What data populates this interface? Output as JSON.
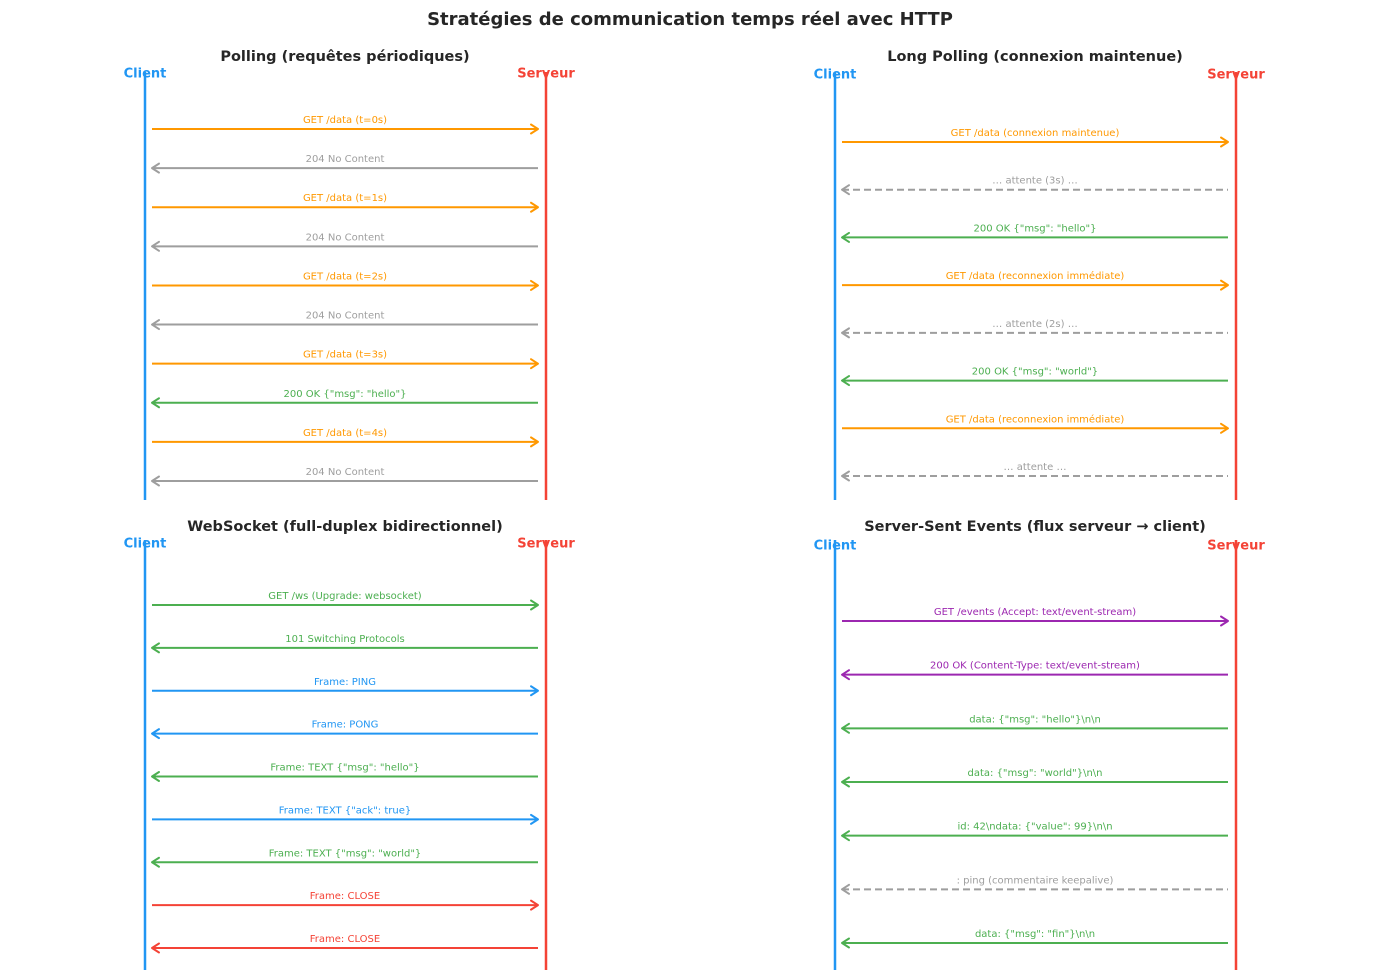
{
  "title": "Stratégies de communication temps réel avec HTTP",
  "panels": [
    {
      "title": "Polling (requêtes périodiques)",
      "client": "Client",
      "server": "Serveur",
      "messages": [
        {
          "label": "GET /data (t=0s)",
          "dir": "right",
          "color": "#ff9800",
          "dashed": false
        },
        {
          "label": "204 No Content",
          "dir": "left",
          "color": "#9e9e9e",
          "dashed": false
        },
        {
          "label": "GET /data (t=1s)",
          "dir": "right",
          "color": "#ff9800",
          "dashed": false
        },
        {
          "label": "204 No Content",
          "dir": "left",
          "color": "#9e9e9e",
          "dashed": false
        },
        {
          "label": "GET /data (t=2s)",
          "dir": "right",
          "color": "#ff9800",
          "dashed": false
        },
        {
          "label": "204 No Content",
          "dir": "left",
          "color": "#9e9e9e",
          "dashed": false
        },
        {
          "label": "GET /data (t=3s)",
          "dir": "right",
          "color": "#ff9800",
          "dashed": false
        },
        {
          "label": "200 OK {\"msg\": \"hello\"}",
          "dir": "left",
          "color": "#4caf50",
          "dashed": false
        },
        {
          "label": "GET /data (t=4s)",
          "dir": "right",
          "color": "#ff9800",
          "dashed": false
        },
        {
          "label": "204 No Content",
          "dir": "left",
          "color": "#9e9e9e",
          "dashed": false
        }
      ]
    },
    {
      "title": "Long Polling (connexion maintenue)",
      "client": "Client",
      "server": "Serveur",
      "messages": [
        {
          "label": "GET /data (connexion maintenue)",
          "dir": "right",
          "color": "#ff9800",
          "dashed": false
        },
        {
          "label": "… attente (3s) …",
          "dir": "left",
          "color": "#9e9e9e",
          "dashed": true
        },
        {
          "label": "200 OK {\"msg\": \"hello\"}",
          "dir": "left",
          "color": "#4caf50",
          "dashed": false
        },
        {
          "label": "GET /data (reconnexion immédiate)",
          "dir": "right",
          "color": "#ff9800",
          "dashed": false
        },
        {
          "label": "… attente (2s) …",
          "dir": "left",
          "color": "#9e9e9e",
          "dashed": true
        },
        {
          "label": "200 OK {\"msg\": \"world\"}",
          "dir": "left",
          "color": "#4caf50",
          "dashed": false
        },
        {
          "label": "GET /data (reconnexion immédiate)",
          "dir": "right",
          "color": "#ff9800",
          "dashed": false
        },
        {
          "label": "… attente …",
          "dir": "left",
          "color": "#9e9e9e",
          "dashed": true
        }
      ]
    },
    {
      "title": "WebSocket (full-duplex bidirectionnel)",
      "client": "Client",
      "server": "Serveur",
      "messages": [
        {
          "label": "GET /ws (Upgrade: websocket)",
          "dir": "right",
          "color": "#4caf50",
          "dashed": false
        },
        {
          "label": "101 Switching Protocols",
          "dir": "left",
          "color": "#4caf50",
          "dashed": false
        },
        {
          "label": "Frame: PING",
          "dir": "right",
          "color": "#2196f3",
          "dashed": false
        },
        {
          "label": "Frame: PONG",
          "dir": "left",
          "color": "#2196f3",
          "dashed": false
        },
        {
          "label": "Frame: TEXT {\"msg\": \"hello\"}",
          "dir": "left",
          "color": "#4caf50",
          "dashed": false
        },
        {
          "label": "Frame: TEXT {\"ack\": true}",
          "dir": "right",
          "color": "#2196f3",
          "dashed": false
        },
        {
          "label": "Frame: TEXT {\"msg\": \"world\"}",
          "dir": "left",
          "color": "#4caf50",
          "dashed": false
        },
        {
          "label": "Frame: CLOSE",
          "dir": "right",
          "color": "#f44336",
          "dashed": false
        },
        {
          "label": "Frame: CLOSE",
          "dir": "left",
          "color": "#f44336",
          "dashed": false
        }
      ]
    },
    {
      "title": "Server-Sent Events (flux serveur → client)",
      "client": "Client",
      "server": "Serveur",
      "messages": [
        {
          "label": "GET /events (Accept: text/event-stream)",
          "dir": "right",
          "color": "#9c27b0",
          "dashed": false
        },
        {
          "label": "200 OK (Content-Type: text/event-stream)",
          "dir": "left",
          "color": "#9c27b0",
          "dashed": false
        },
        {
          "label": "data: {\"msg\": \"hello\"}\\n\\n",
          "dir": "left",
          "color": "#4caf50",
          "dashed": false
        },
        {
          "label": "data: {\"msg\": \"world\"}\\n\\n",
          "dir": "left",
          "color": "#4caf50",
          "dashed": false
        },
        {
          "label": "id: 42\\ndata: {\"value\": 99}\\n\\n",
          "dir": "left",
          "color": "#4caf50",
          "dashed": false
        },
        {
          "label": ": ping (commentaire keepalive)",
          "dir": "left",
          "color": "#9e9e9e",
          "dashed": true
        },
        {
          "label": "data: {\"msg\": \"fin\"}\\n\\n",
          "dir": "left",
          "color": "#4caf50",
          "dashed": false
        }
      ]
    }
  ]
}
